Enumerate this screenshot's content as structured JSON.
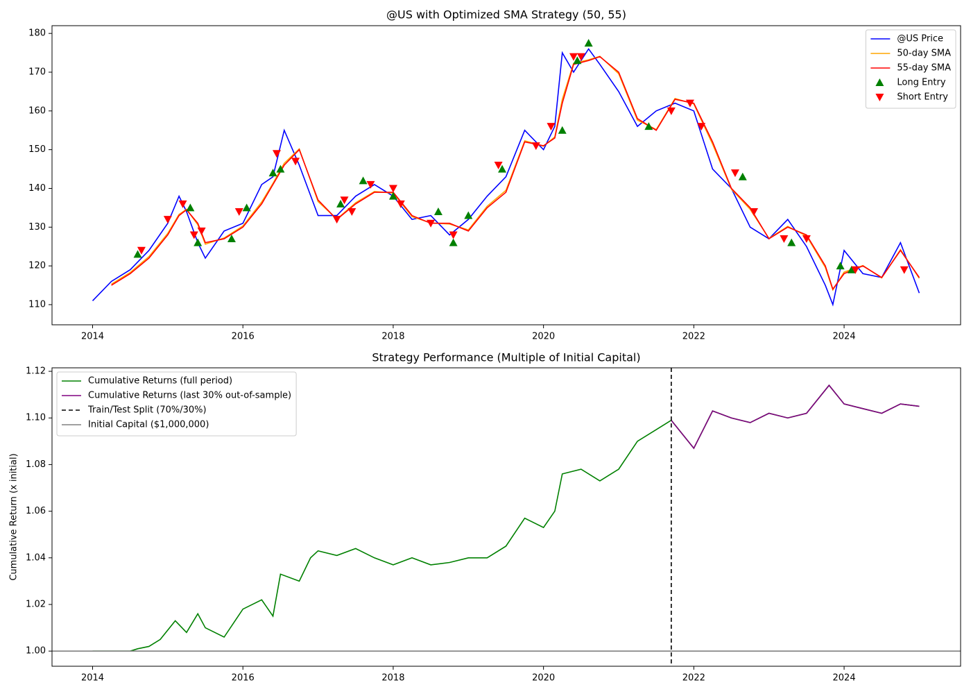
{
  "chart_data": [
    {
      "type": "line",
      "title": "@US with Optimized SMA Strategy (50, 55)",
      "xlim": [
        2013.46,
        2025.55
      ],
      "xticks": [
        2014,
        2016,
        2018,
        2020,
        2022,
        2024
      ],
      "ylim": [
        104.8,
        182.0
      ],
      "yticks": [
        110,
        120,
        130,
        140,
        150,
        160,
        170,
        180
      ],
      "legend": "upper right",
      "series": [
        {
          "name": "@US Price",
          "type": "line",
          "color": "blue",
          "x": [
            2014.0,
            2014.25,
            2014.5,
            2014.75,
            2015.0,
            2015.15,
            2015.25,
            2015.4,
            2015.5,
            2015.75,
            2016.0,
            2016.25,
            2016.4,
            2016.55,
            2016.75,
            2017.0,
            2017.25,
            2017.5,
            2017.75,
            2018.0,
            2018.25,
            2018.5,
            2018.75,
            2019.0,
            2019.25,
            2019.5,
            2019.75,
            2020.0,
            2020.15,
            2020.25,
            2020.4,
            2020.6,
            2020.75,
            2021.0,
            2021.25,
            2021.5,
            2021.75,
            2022.0,
            2022.25,
            2022.5,
            2022.75,
            2023.0,
            2023.25,
            2023.5,
            2023.75,
            2023.85,
            2024.0,
            2024.25,
            2024.5,
            2024.75,
            2025.0
          ],
          "values": [
            111,
            116,
            119,
            124,
            131,
            138,
            134,
            126,
            122,
            129,
            131,
            141,
            143,
            155,
            146,
            133,
            133,
            138,
            141,
            138,
            132,
            133,
            128,
            132,
            138,
            143,
            155,
            150,
            156,
            175,
            170,
            176,
            172,
            165,
            156,
            160,
            162,
            160,
            145,
            140,
            130,
            127,
            132,
            125,
            115,
            110,
            124,
            118,
            117,
            126,
            113
          ]
        },
        {
          "name": "50-day SMA",
          "type": "line",
          "color": "orange",
          "x": [
            2014.0,
            2014.25,
            2014.5,
            2014.75,
            2015.0,
            2015.15,
            2015.25,
            2015.4,
            2015.5,
            2015.75,
            2016.0,
            2016.25,
            2016.4,
            2016.55,
            2016.75,
            2017.0,
            2017.25,
            2017.5,
            2017.75,
            2018.0,
            2018.25,
            2018.5,
            2018.75,
            2019.0,
            2019.25,
            2019.5,
            2019.75,
            2020.0,
            2020.15,
            2020.25,
            2020.4,
            2020.6,
            2020.75,
            2021.0,
            2021.25,
            2021.5,
            2021.75,
            2022.0,
            2022.25,
            2022.5,
            2022.75,
            2023.0,
            2023.25,
            2023.5,
            2023.75,
            2023.85,
            2024.0,
            2024.25,
            2024.5,
            2024.75,
            2025.0
          ],
          "values": [
            null,
            115.3,
            118.3,
            122.4,
            128.4,
            133.3,
            134.6,
            130.6,
            125.6,
            127.2,
            130.3,
            136.5,
            141.3,
            146.5,
            150.2,
            136.6,
            132.1,
            136.3,
            139.2,
            138.8,
            132.7,
            131.1,
            130.8,
            129.3,
            135.4,
            139.5,
            152.3,
            150.9,
            153.3,
            163,
            172.3,
            173.2,
            174.1,
            169.6,
            157.6,
            155.2,
            163.2,
            161.8,
            151.4,
            139.8,
            134.6,
            127.1,
            130.2,
            127.7,
            119.6,
            113.8,
            118.4,
            120.1,
            116.9,
            124.2,
            116.8
          ]
        },
        {
          "name": "55-day SMA",
          "type": "line",
          "color": "red",
          "x": [
            2014.0,
            2014.25,
            2014.5,
            2014.75,
            2015.0,
            2015.15,
            2015.25,
            2015.4,
            2015.5,
            2015.75,
            2016.0,
            2016.25,
            2016.4,
            2016.55,
            2016.75,
            2017.0,
            2017.25,
            2017.5,
            2017.75,
            2018.0,
            2018.25,
            2018.5,
            2018.75,
            2019.0,
            2019.25,
            2019.5,
            2019.75,
            2020.0,
            2020.15,
            2020.25,
            2020.4,
            2020.6,
            2020.75,
            2021.0,
            2021.25,
            2021.5,
            2021.75,
            2022.0,
            2022.25,
            2022.5,
            2022.75,
            2023.0,
            2023.25,
            2023.5,
            2023.75,
            2023.85,
            2024.0,
            2024.25,
            2024.5,
            2024.75,
            2025.0
          ],
          "values": [
            null,
            115,
            118,
            122,
            128,
            133,
            134.5,
            131,
            126,
            127,
            130,
            136,
            141,
            146,
            150,
            137,
            132,
            136,
            139,
            139,
            133,
            131,
            131,
            129,
            135,
            139,
            152,
            151,
            153,
            162,
            172,
            173,
            174,
            170,
            158,
            155,
            163,
            162,
            152,
            140,
            135,
            127,
            130,
            128,
            120,
            114,
            118,
            120,
            117,
            124,
            117
          ]
        },
        {
          "name": "Long Entry",
          "type": "scatter",
          "marker": "^",
          "color": "green",
          "x": [
            2014.6,
            2015.3,
            2015.4,
            2015.85,
            2016.05,
            2016.4,
            2016.5,
            2017.3,
            2017.6,
            2018.0,
            2018.6,
            2018.8,
            2019.0,
            2019.45,
            2020.25,
            2020.45,
            2020.6,
            2021.4,
            2022.65,
            2023.3,
            2023.95,
            2024.1
          ],
          "values": [
            123,
            135,
            126,
            127,
            135,
            144,
            145,
            136,
            142,
            138,
            134,
            126,
            133,
            145,
            155,
            173,
            177.5,
            156,
            143,
            126,
            120,
            119
          ]
        },
        {
          "name": "Short Entry",
          "type": "scatter",
          "marker": "v",
          "color": "red",
          "x": [
            2014.65,
            2015.0,
            2015.2,
            2015.35,
            2015.45,
            2015.95,
            2016.45,
            2016.7,
            2017.25,
            2017.35,
            2017.45,
            2017.7,
            2018.0,
            2018.1,
            2018.5,
            2018.8,
            2019.4,
            2019.9,
            2020.1,
            2020.4,
            2020.5,
            2021.7,
            2021.95,
            2022.1,
            2022.55,
            2022.8,
            2023.2,
            2023.5,
            2024.15,
            2024.8
          ],
          "values": [
            124,
            132,
            136,
            128,
            129,
            134,
            149,
            147,
            132,
            137,
            134,
            141,
            140,
            136,
            131,
            128,
            146,
            151,
            156,
            174,
            174,
            160,
            162,
            156,
            144,
            134,
            127,
            127,
            119,
            119
          ]
        }
      ]
    },
    {
      "type": "line",
      "title": "Strategy Performance (Multiple of Initial Capital)",
      "y_label": "Cumulative Return (x initial)",
      "xlim": [
        2013.46,
        2025.55
      ],
      "xticks": [
        2014,
        2016,
        2018,
        2020,
        2022,
        2024
      ],
      "ylim": [
        0.9935,
        1.1215
      ],
      "yticks": [
        {
          "value": 1.0,
          "label": "1.00"
        },
        1.02,
        1.04,
        1.06,
        1.08,
        {
          "value": 1.1,
          "label": "1.10"
        },
        1.12
      ],
      "legend": "upper left",
      "series": [
        {
          "name": "Cumulative Returns (full period)",
          "type": "line",
          "color": "green",
          "x": [
            2014.0,
            2014.5,
            2014.6,
            2014.75,
            2014.9,
            2015.1,
            2015.25,
            2015.4,
            2015.5,
            2015.75,
            2016.0,
            2016.25,
            2016.4,
            2016.5,
            2016.75,
            2016.9,
            2017.0,
            2017.25,
            2017.5,
            2017.75,
            2018.0,
            2018.25,
            2018.5,
            2018.75,
            2019.0,
            2019.25,
            2019.5,
            2019.75,
            2020.0,
            2020.15,
            2020.25,
            2020.5,
            2020.75,
            2021.0,
            2021.25,
            2021.5,
            2021.7,
            2022.0,
            2022.25,
            2022.5,
            2022.75,
            2023.0,
            2023.25,
            2023.5,
            2023.8,
            2024.0,
            2024.25,
            2024.5,
            2024.75,
            2025.0
          ],
          "values": [
            1.0,
            1.0,
            1.001,
            1.002,
            1.005,
            1.013,
            1.008,
            1.016,
            1.01,
            1.006,
            1.018,
            1.022,
            1.015,
            1.033,
            1.03,
            1.04,
            1.043,
            1.041,
            1.044,
            1.04,
            1.037,
            1.04,
            1.037,
            1.038,
            1.04,
            1.04,
            1.045,
            1.057,
            1.053,
            1.06,
            1.076,
            1.078,
            1.073,
            1.078,
            1.09,
            1.095,
            1.099,
            1.087,
            1.103,
            1.1,
            1.098,
            1.102,
            1.1,
            1.102,
            1.114,
            1.106,
            1.104,
            1.102,
            1.106,
            1.105
          ]
        },
        {
          "name": "Cumulative Returns (last 30% out-of-sample)",
          "type": "line",
          "color": "purple",
          "x": [
            2021.7,
            2022.0,
            2022.25,
            2022.5,
            2022.75,
            2023.0,
            2023.25,
            2023.5,
            2023.8,
            2024.0,
            2024.25,
            2024.5,
            2024.75,
            2025.0
          ],
          "values": [
            1.099,
            1.087,
            1.103,
            1.1,
            1.098,
            1.102,
            1.1,
            1.102,
            1.114,
            1.106,
            1.104,
            1.102,
            1.106,
            1.105
          ]
        },
        {
          "name": "Train/Test Split (70%/30%)",
          "type": "vline",
          "color": "black",
          "dash": true,
          "x": 2021.7
        },
        {
          "name": "Initial Capital ($1,000,000)",
          "type": "hline",
          "color": "gray",
          "value": 1.0
        }
      ]
    }
  ]
}
